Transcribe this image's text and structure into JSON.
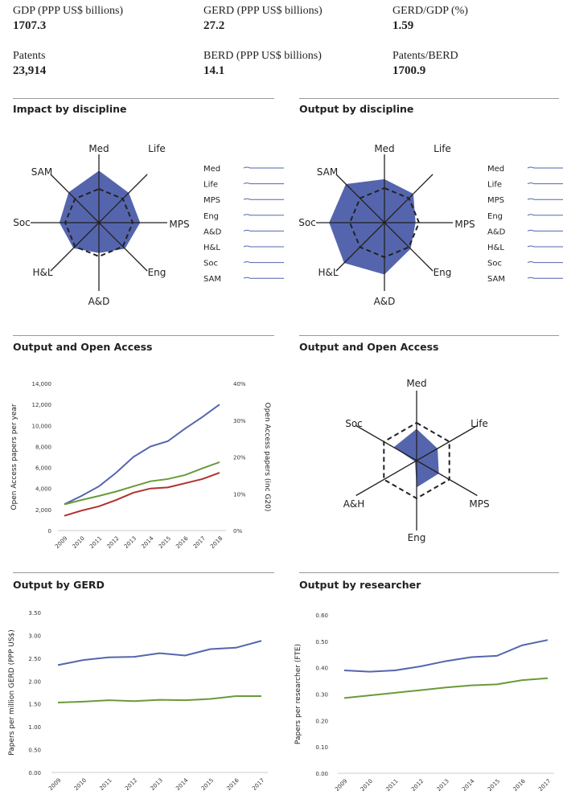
{
  "stats": [
    {
      "label": "GDP (PPP US$ billions)",
      "value": "1707.3"
    },
    {
      "label": "GERD (PPP US$ billions)",
      "value": "27.2"
    },
    {
      "label": "GERD/GDP (%)",
      "value": "1.59"
    },
    {
      "label": "Patents",
      "value": "23,914"
    },
    {
      "label": "BERD (PPP US$ billions)",
      "value": "14.1"
    },
    {
      "label": "Patents/BERD",
      "value": "1700.9"
    }
  ],
  "sections": [
    "Impact by discipline",
    "Output by discipline",
    "Output and Open Access",
    "Output and Open Access",
    "Output by GERD",
    "Output by researcher"
  ],
  "colors": {
    "blue": "#5565ad",
    "fill": "#5565ad",
    "green": "#6a9a3a",
    "red": "#b0302e"
  },
  "chart_data": [
    {
      "type": "radar",
      "axes": [
        "Med",
        "Life",
        "MPS",
        "Eng",
        "A&D",
        "H&L",
        "Soc",
        "SAM"
      ],
      "values": [
        1.54,
        1.25,
        1.22,
        1.09,
        0.9,
        1.07,
        1.17,
        1.27
      ],
      "reference": 1.0,
      "legend": [
        "Med",
        "Life",
        "MPS",
        "Eng",
        "A&D",
        "H&L",
        "Soc",
        "SAM"
      ]
    },
    {
      "type": "radar",
      "axes": [
        "Med",
        "Life",
        "MPS",
        "Eng",
        "A&D",
        "H&L",
        "Soc",
        "SAM"
      ],
      "values": [
        1.26,
        1.18,
        0.9,
        1.07,
        1.5,
        1.65,
        1.6,
        1.58
      ],
      "reference": 1.0,
      "legend": [
        "Med",
        "Life",
        "MPS",
        "Eng",
        "A&D",
        "H&L",
        "Soc",
        "SAM"
      ]
    },
    {
      "type": "line",
      "categories": [
        "2009",
        "2010",
        "2011",
        "2012",
        "2013",
        "2014",
        "2015",
        "2016",
        "2017",
        "2018"
      ],
      "ylabel": "Open Access papers per year",
      "ylabel_right": "Open Access papers (inc G20)",
      "ylim": [
        0,
        14000
      ],
      "yticks": [
        "0",
        "2,000",
        "4,000",
        "6,000",
        "8,000",
        "10,000",
        "12,000",
        "14,000"
      ],
      "ylim_right": [
        0,
        40
      ],
      "yticks_right": [
        "0%",
        "10%",
        "20%",
        "30%",
        "40%"
      ],
      "series": [
        {
          "color": "blue",
          "axis": "left",
          "values": [
            2500,
            3300,
            4200,
            5500,
            7000,
            8000,
            8500,
            9700,
            10800,
            12000
          ]
        },
        {
          "color": "green",
          "axis": "right",
          "values": [
            7.1,
            8.3,
            9.4,
            10.6,
            12.0,
            13.4,
            14.0,
            15.1,
            16.9,
            18.6
          ]
        },
        {
          "color": "red",
          "axis": "left",
          "values": [
            1400,
            1900,
            2300,
            2900,
            3600,
            4000,
            4100,
            4500,
            4900,
            5500
          ]
        }
      ]
    },
    {
      "type": "radar",
      "axes": [
        "Med",
        "Life",
        "MPS",
        "Eng",
        "A&H",
        "Soc"
      ],
      "values": [
        0.84,
        0.64,
        0.68,
        0.71,
        0.05,
        0.7
      ],
      "reference": 1.0
    },
    {
      "type": "line",
      "categories": [
        "2009",
        "2010",
        "2011",
        "2012",
        "2013",
        "2014",
        "2015",
        "2016",
        "2017"
      ],
      "ylabel": "Papers per million GERD (PPP US$)",
      "ylim": [
        0,
        3.5
      ],
      "yticks": [
        "0.00",
        "0.50",
        "1.00",
        "1.50",
        "2.00",
        "2.50",
        "3.00",
        "3.50"
      ],
      "series": [
        {
          "color": "blue",
          "values": [
            2.35,
            2.46,
            2.52,
            2.53,
            2.61,
            2.56,
            2.7,
            2.73,
            2.88
          ]
        },
        {
          "color": "green",
          "values": [
            1.53,
            1.55,
            1.58,
            1.56,
            1.59,
            1.58,
            1.61,
            1.67,
            1.67
          ]
        }
      ]
    },
    {
      "type": "line",
      "categories": [
        "2009",
        "2010",
        "2011",
        "2012",
        "2013",
        "2014",
        "2015",
        "2016",
        "2017"
      ],
      "ylabel": "Papers per researcher (FTE)",
      "ylim": [
        0,
        0.6
      ],
      "yticks": [
        "0.00",
        "0.10",
        "0.20",
        "0.30",
        "0.40",
        "0.50",
        "0.60"
      ],
      "series": [
        {
          "color": "blue",
          "values": [
            0.39,
            0.385,
            0.39,
            0.405,
            0.425,
            0.44,
            0.445,
            0.485,
            0.505
          ]
        },
        {
          "color": "green",
          "values": [
            0.285,
            0.295,
            0.305,
            0.315,
            0.325,
            0.333,
            0.337,
            0.353,
            0.36
          ]
        }
      ]
    }
  ]
}
